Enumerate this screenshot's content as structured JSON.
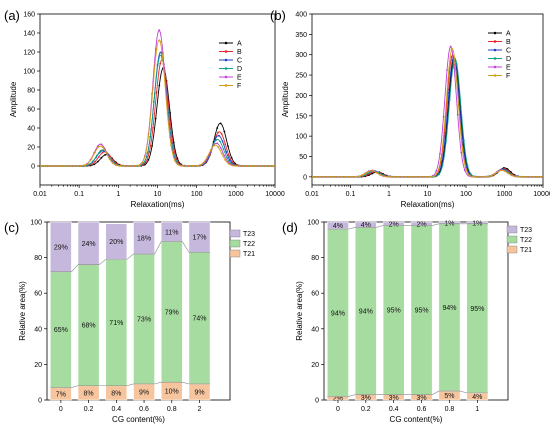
{
  "chart_data": [
    {
      "panel_label": "(a)",
      "type": "line",
      "xlabel": "Relaxation(ms)",
      "ylabel": "Amplitude",
      "xscale": "log",
      "xlim": [
        0.01,
        10000
      ],
      "ylim": [
        -20,
        160
      ],
      "xticks": [
        "0.01",
        "0.1",
        "1",
        "10",
        "100",
        "1000",
        "10000"
      ],
      "yticks": [
        "0",
        "20",
        "40",
        "60",
        "80",
        "100",
        "120",
        "140",
        "160"
      ],
      "legend_position": "right",
      "series": [
        {
          "name": "A",
          "color": "#000000",
          "peaks": [
            {
              "t": 0.5,
              "amp": 12
            },
            {
              "t": 14,
              "amp": 103
            },
            {
              "t": 400,
              "amp": 45
            }
          ]
        },
        {
          "name": "B",
          "color": "#e8252a",
          "peaks": [
            {
              "t": 0.45,
              "amp": 15
            },
            {
              "t": 13,
              "amp": 112
            },
            {
              "t": 380,
              "amp": 36
            }
          ]
        },
        {
          "name": "C",
          "color": "#1f3fbf",
          "peaks": [
            {
              "t": 0.4,
              "amp": 16
            },
            {
              "t": 12,
              "amp": 120
            },
            {
              "t": 360,
              "amp": 32
            }
          ]
        },
        {
          "name": "D",
          "color": "#13a08d",
          "peaks": [
            {
              "t": 0.4,
              "amp": 17
            },
            {
              "t": 12,
              "amp": 117
            },
            {
              "t": 340,
              "amp": 28
            }
          ]
        },
        {
          "name": "E",
          "color": "#c43fd6",
          "peaks": [
            {
              "t": 0.35,
              "amp": 23
            },
            {
              "t": 11,
              "amp": 143
            },
            {
              "t": 320,
              "amp": 24
            }
          ]
        },
        {
          "name": "F",
          "color": "#d4a017",
          "peaks": [
            {
              "t": 0.35,
              "amp": 21
            },
            {
              "t": 11,
              "amp": 133
            },
            {
              "t": 300,
              "amp": 22
            }
          ]
        }
      ]
    },
    {
      "panel_label": "(b)",
      "type": "line",
      "xlabel": "Relaxation(ms)",
      "ylabel": "Amplitude",
      "xscale": "log",
      "xlim": [
        0.01,
        10000
      ],
      "ylim": [
        -20,
        400
      ],
      "xticks": [
        "0.01",
        "0.1",
        "1",
        "10",
        "100",
        "1000",
        "10000"
      ],
      "yticks": [
        "0",
        "50",
        "100",
        "150",
        "200",
        "250",
        "300",
        "350",
        "400"
      ],
      "legend_position": "right",
      "series": [
        {
          "name": "A",
          "color": "#000000",
          "peaks": [
            {
              "t": 0.5,
              "amp": 12
            },
            {
              "t": 50,
              "amp": 293
            },
            {
              "t": 1000,
              "amp": 22
            }
          ]
        },
        {
          "name": "B",
          "color": "#e8252a",
          "peaks": [
            {
              "t": 0.45,
              "amp": 13
            },
            {
              "t": 45,
              "amp": 300
            },
            {
              "t": 950,
              "amp": 20
            }
          ]
        },
        {
          "name": "C",
          "color": "#1f3fbf",
          "peaks": [
            {
              "t": 0.4,
              "amp": 14
            },
            {
              "t": 48,
              "amp": 295
            },
            {
              "t": 900,
              "amp": 19
            }
          ]
        },
        {
          "name": "D",
          "color": "#13a08d",
          "peaks": [
            {
              "t": 0.4,
              "amp": 15
            },
            {
              "t": 52,
              "amp": 290
            },
            {
              "t": 900,
              "amp": 18
            }
          ]
        },
        {
          "name": "E",
          "color": "#c43fd6",
          "peaks": [
            {
              "t": 0.35,
              "amp": 16
            },
            {
              "t": 40,
              "amp": 320
            },
            {
              "t": 850,
              "amp": 17
            }
          ]
        },
        {
          "name": "F",
          "color": "#d4a017",
          "peaks": [
            {
              "t": 0.35,
              "amp": 15
            },
            {
              "t": 44,
              "amp": 315
            },
            {
              "t": 850,
              "amp": 16
            }
          ]
        }
      ]
    },
    {
      "panel_label": "(c)",
      "type": "bar",
      "stacked": true,
      "xlabel": "CG content(%)",
      "ylabel": "Relative area(%)",
      "ylim": [
        0,
        100
      ],
      "yticks": [
        "0",
        "20",
        "40",
        "60",
        "80",
        "100"
      ],
      "categories": [
        "0",
        "0.2",
        "0.4",
        "0.6",
        "0.8",
        "2"
      ],
      "legend_position": "top-right",
      "series": [
        {
          "name": "T21",
          "color": "#f6c59e",
          "values": [
            7,
            8,
            8,
            9,
            10,
            9
          ],
          "labels": [
            "7%",
            "8%",
            "8%",
            "9%",
            "10%",
            "9%"
          ]
        },
        {
          "name": "T22",
          "color": "#a6dca0",
          "values": [
            65,
            68,
            71,
            73,
            79,
            74
          ],
          "labels": [
            "65%",
            "68%",
            "71%",
            "73%",
            "79%",
            "74%"
          ]
        },
        {
          "name": "T23",
          "color": "#c6b8dc",
          "values": [
            29,
            24,
            20,
            18,
            11,
            17
          ],
          "labels": [
            "29%",
            "24%",
            "20%",
            "18%",
            "11%",
            "17%"
          ]
        }
      ]
    },
    {
      "panel_label": "(d)",
      "type": "bar",
      "stacked": true,
      "xlabel": "CG content(%)",
      "ylabel": "Relative area(%)",
      "ylim": [
        0,
        100
      ],
      "yticks": [
        "0",
        "20",
        "40",
        "60",
        "80",
        "100"
      ],
      "categories": [
        "0",
        "0.2",
        "0.4",
        "0.6",
        "0.8",
        "1"
      ],
      "legend_position": "top-right",
      "series": [
        {
          "name": "T21",
          "color": "#f6c59e",
          "values": [
            2,
            3,
            3,
            3,
            5,
            4
          ],
          "labels": [
            "2%",
            "3%",
            "3%",
            "3%",
            "5%",
            "4%"
          ]
        },
        {
          "name": "T22",
          "color": "#a6dca0",
          "values": [
            94,
            94,
            95,
            95,
            94,
            95
          ],
          "labels": [
            "94%",
            "94%",
            "95%",
            "95%",
            "94%",
            "95%"
          ]
        },
        {
          "name": "T23",
          "color": "#c6b8dc",
          "values": [
            4,
            4,
            2,
            2,
            1,
            1
          ],
          "labels": [
            "4%",
            "4%",
            "2%",
            "2%",
            "1%",
            "1%"
          ]
        }
      ]
    }
  ]
}
